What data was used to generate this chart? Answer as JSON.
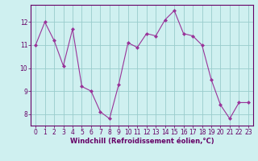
{
  "x": [
    0,
    1,
    2,
    3,
    4,
    5,
    6,
    7,
    8,
    9,
    10,
    11,
    12,
    13,
    14,
    15,
    16,
    17,
    18,
    19,
    20,
    21,
    22,
    23
  ],
  "y": [
    11.0,
    12.0,
    11.2,
    10.1,
    11.7,
    9.2,
    9.0,
    8.1,
    7.8,
    9.3,
    11.1,
    10.9,
    11.5,
    11.4,
    12.1,
    12.5,
    11.5,
    11.4,
    11.0,
    9.5,
    8.4,
    7.8,
    8.5,
    8.5
  ],
  "line_color": "#993399",
  "marker": "D",
  "marker_size": 2,
  "bg_color": "#cff0f0",
  "grid_color": "#99cccc",
  "xlabel": "Windchill (Refroidissement éolien,°C)",
  "xlabel_color": "#660066",
  "tick_color": "#660066",
  "spine_color": "#660066",
  "ylim": [
    7.5,
    12.75
  ],
  "xlim": [
    -0.5,
    23.5
  ],
  "yticks": [
    8,
    9,
    10,
    11,
    12
  ],
  "xticks": [
    0,
    1,
    2,
    3,
    4,
    5,
    6,
    7,
    8,
    9,
    10,
    11,
    12,
    13,
    14,
    15,
    16,
    17,
    18,
    19,
    20,
    21,
    22,
    23
  ],
  "tick_fontsize": 5.5,
  "xlabel_fontsize": 6.0
}
